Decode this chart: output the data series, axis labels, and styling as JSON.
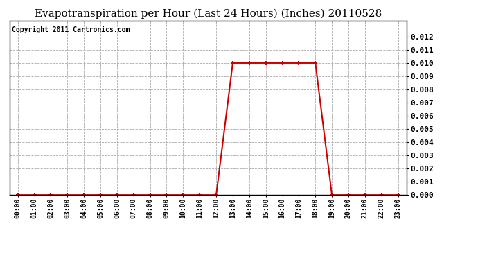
{
  "title": "Evapotranspiration per Hour (Last 24 Hours) (Inches) 20110528",
  "copyright": "Copyright 2011 Cartronics.com",
  "hours": [
    0,
    1,
    2,
    3,
    4,
    5,
    6,
    7,
    8,
    9,
    10,
    11,
    12,
    13,
    14,
    15,
    16,
    17,
    18,
    19,
    20,
    21,
    22,
    23
  ],
  "values": [
    0.0,
    0.0,
    0.0,
    0.0,
    0.0,
    0.0,
    0.0,
    0.0,
    0.0,
    0.0,
    0.0,
    0.0,
    0.0,
    0.01,
    0.01,
    0.01,
    0.01,
    0.01,
    0.01,
    0.0,
    0.0,
    0.0,
    0.0,
    0.0
  ],
  "line_color": "#cc0000",
  "marker": "+",
  "marker_color": "#cc0000",
  "bg_color": "#ffffff",
  "grid_color": "#aaaaaa",
  "ylim": [
    0.0,
    0.0132
  ],
  "yticks": [
    0.0,
    0.001,
    0.002,
    0.003,
    0.004,
    0.005,
    0.006,
    0.007,
    0.008,
    0.009,
    0.01,
    0.011,
    0.012
  ],
  "title_fontsize": 11,
  "copyright_fontsize": 7,
  "tick_label_fontsize": 7,
  "ytick_fontsize": 8
}
